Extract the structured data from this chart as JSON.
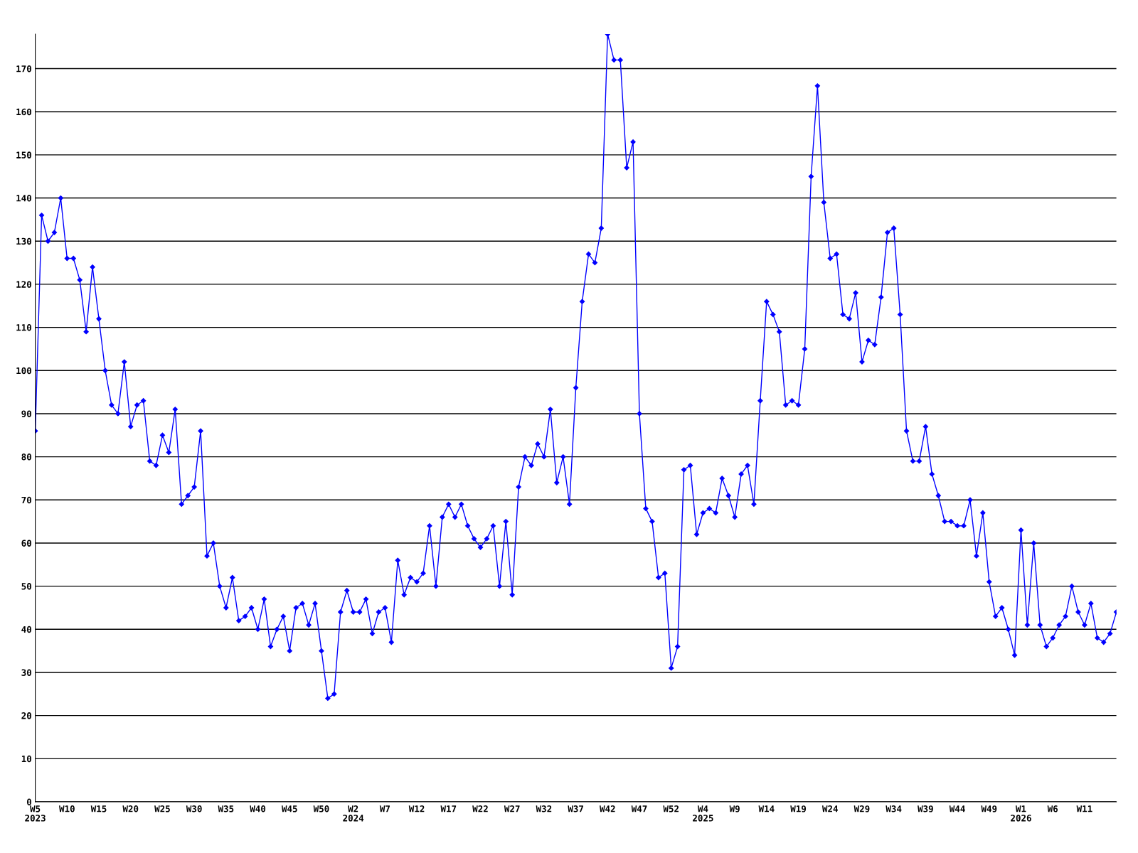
{
  "chart_data": {
    "type": "line",
    "categories": [
      "W5\n2023",
      null,
      null,
      null,
      null,
      "W10",
      null,
      null,
      null,
      null,
      "W15",
      null,
      null,
      null,
      null,
      "W20",
      null,
      null,
      null,
      null,
      "W25",
      null,
      null,
      null,
      null,
      "W30",
      null,
      null,
      null,
      null,
      "W35",
      null,
      null,
      null,
      null,
      "W40",
      null,
      null,
      null,
      null,
      "W45",
      null,
      null,
      null,
      null,
      "W50",
      null,
      null,
      null,
      null,
      "W2\n2024",
      null,
      null,
      null,
      null,
      "W7",
      null,
      null,
      null,
      null,
      "W12",
      null,
      null,
      null,
      null,
      "W17",
      null,
      null,
      null,
      null,
      "W22",
      null,
      null,
      null,
      null,
      "W27",
      null,
      null,
      null,
      null,
      "W32",
      null,
      null,
      null,
      null,
      "W37",
      null,
      null,
      null,
      null,
      "W42",
      null,
      null,
      null,
      null,
      "W47",
      null,
      null,
      null,
      null,
      "W52",
      null,
      null,
      null,
      null,
      "W4\n2025",
      null,
      null,
      null,
      null,
      "W9",
      null,
      null,
      null,
      null,
      "W14",
      null,
      null,
      null,
      null,
      "W19",
      null,
      null,
      null,
      null,
      "W24",
      null,
      null,
      null,
      null,
      "W29",
      null,
      null,
      null,
      null,
      "W34",
      null,
      null,
      null,
      null,
      "W39",
      null,
      null,
      null,
      null,
      "W44",
      null,
      null,
      null,
      null,
      "W49",
      null,
      null,
      null,
      null,
      "W1\n2026",
      null,
      null,
      null,
      null,
      "W6",
      null,
      null,
      null,
      null,
      "W11",
      null,
      null,
      null,
      null,
      null
    ],
    "series": [
      {
        "color": "#0000ff",
        "values": [
          86,
          136,
          130,
          132,
          140,
          126,
          126,
          121,
          109,
          124,
          112,
          100,
          92,
          90,
          102,
          87,
          92,
          93,
          79,
          78,
          85,
          81,
          91,
          69,
          71,
          73,
          86,
          57,
          60,
          50,
          45,
          52,
          42,
          43,
          45,
          40,
          47,
          36,
          40,
          43,
          35,
          45,
          46,
          41,
          46,
          35,
          24,
          25,
          44,
          49,
          44,
          44,
          47,
          39,
          44,
          45,
          37,
          56,
          48,
          52,
          51,
          53,
          64,
          50,
          66,
          69,
          66,
          69,
          64,
          61,
          59,
          61,
          64,
          50,
          65,
          48,
          73,
          80,
          78,
          83,
          80,
          91,
          74,
          80,
          69,
          96,
          116,
          127,
          125,
          133,
          178,
          172,
          172,
          147,
          153,
          90,
          68,
          65,
          52,
          53,
          31,
          36,
          77,
          78,
          62,
          67,
          68,
          67,
          75,
          71,
          66,
          76,
          78,
          69,
          93,
          116,
          113,
          109,
          92,
          93,
          92,
          105,
          145,
          166,
          139,
          126,
          127,
          113,
          112,
          118,
          102,
          107,
          106,
          117,
          132,
          133,
          113,
          86,
          79,
          79,
          87,
          76,
          71,
          65,
          65,
          64,
          64,
          70,
          57,
          67,
          51,
          43,
          45,
          40,
          34,
          63,
          41,
          60,
          41,
          36,
          38,
          41,
          43,
          50,
          44,
          41,
          46,
          38,
          37,
          39,
          44
        ]
      }
    ],
    "ylim": [
      0,
      178
    ],
    "yticks": [
      0,
      10,
      20,
      30,
      40,
      50,
      60,
      70,
      80,
      90,
      100,
      110,
      120,
      130,
      140,
      150,
      160,
      170
    ],
    "grid": "y",
    "marker": "diamond",
    "line_style": "solid",
    "legend": false
  }
}
